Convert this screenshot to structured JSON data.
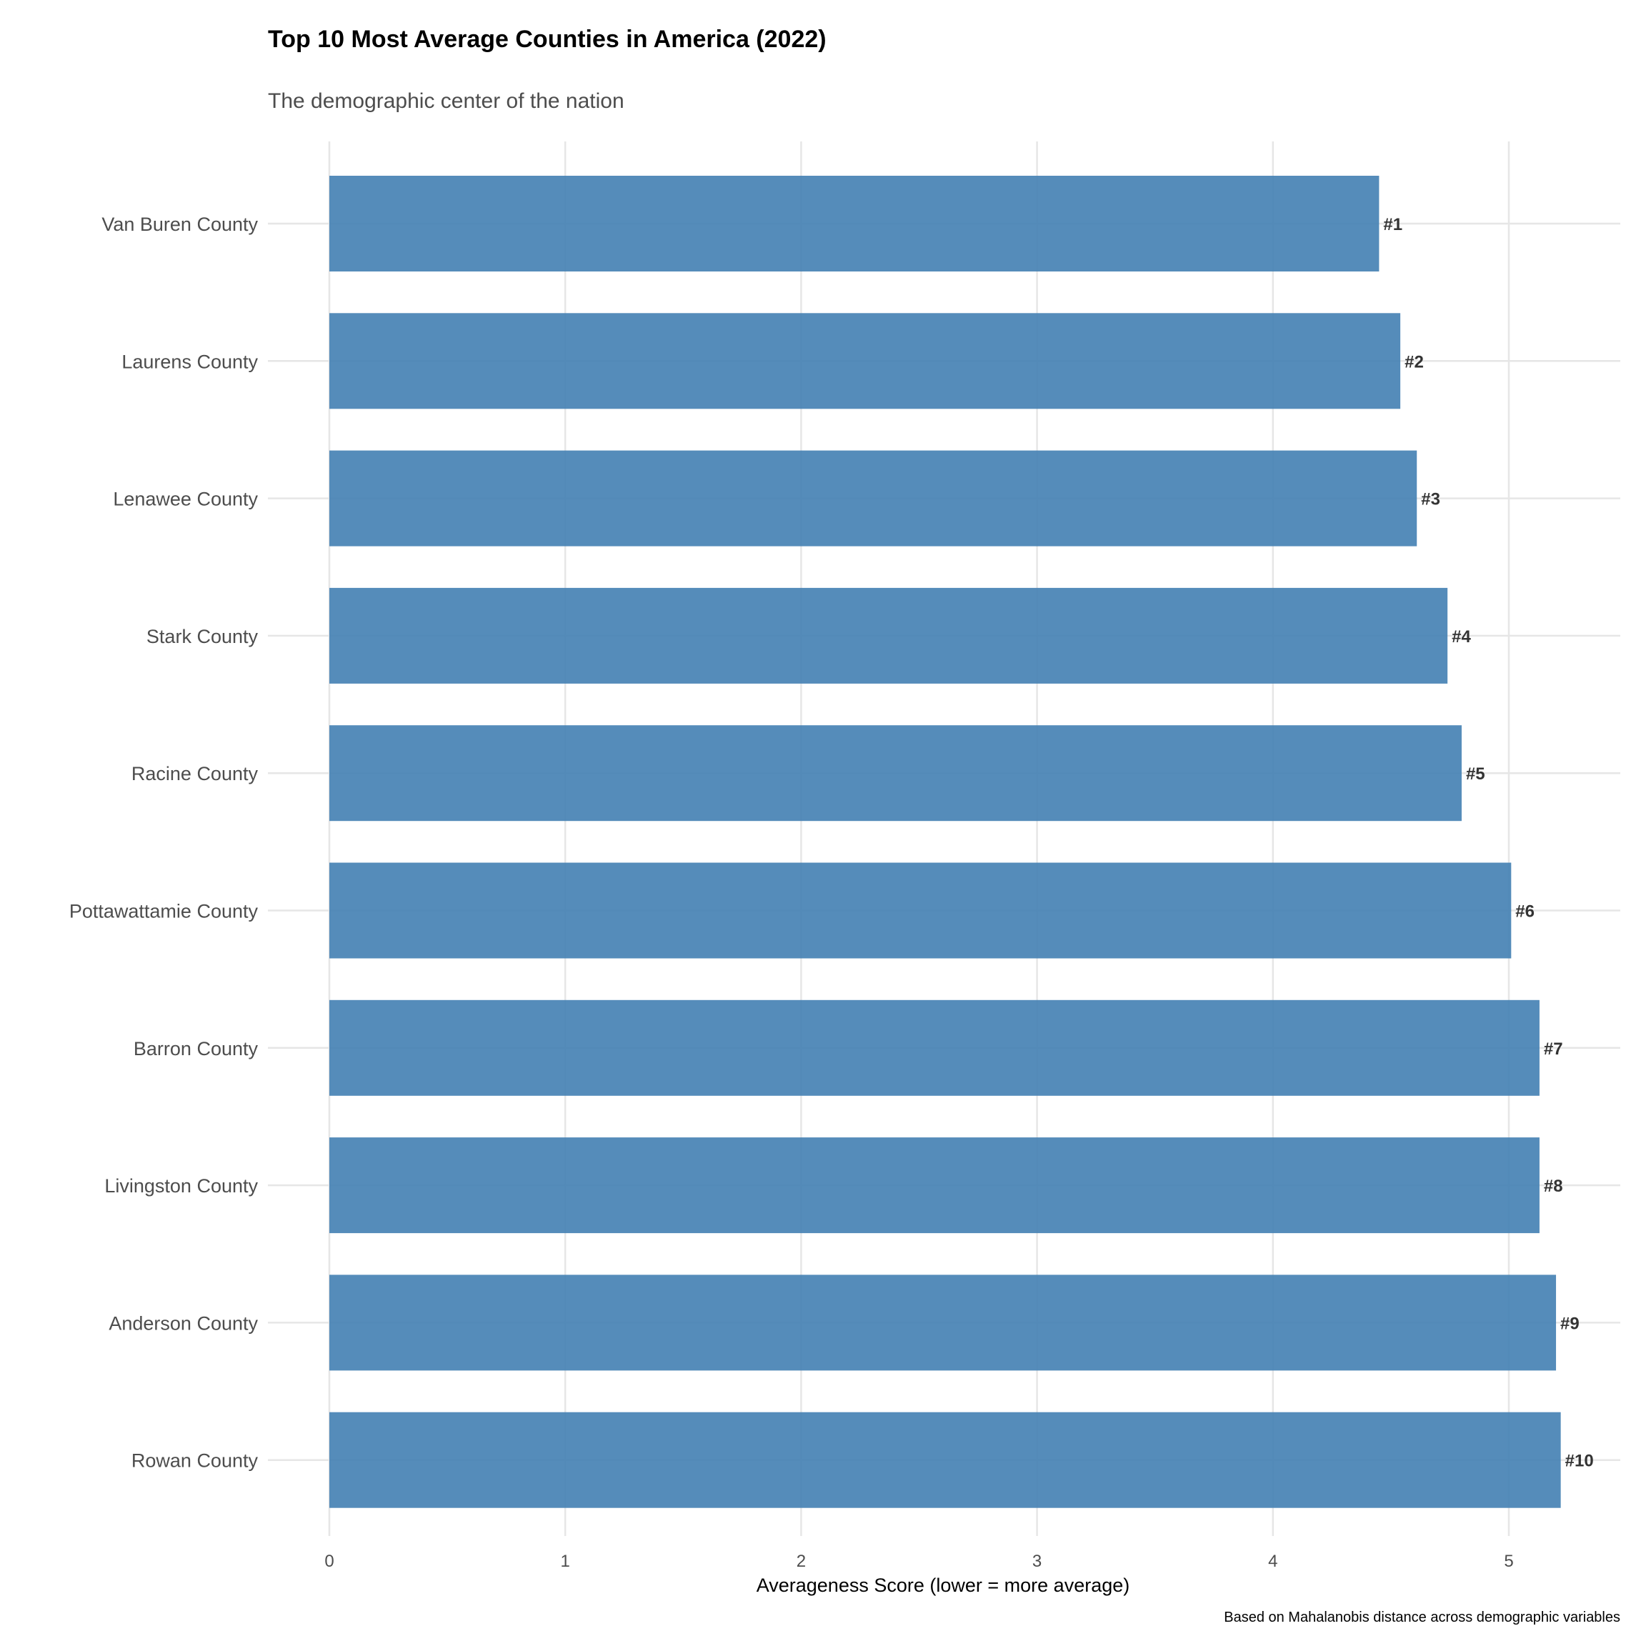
{
  "chart_data": {
    "type": "bar",
    "orientation": "horizontal",
    "title": "Top 10 Most Average Counties in America (2022)",
    "subtitle": "The demographic center of the nation",
    "xlabel": "Averageness Score (lower = more average)",
    "ylabel": "",
    "caption": "Based on Mahalanobis distance across demographic variables",
    "categories": [
      "Van Buren County",
      "Laurens County",
      "Lenawee County",
      "Stark County",
      "Racine County",
      "Pottawattamie County",
      "Barron County",
      "Livingston County",
      "Anderson County",
      "Rowan County"
    ],
    "values": [
      4.45,
      4.54,
      4.61,
      4.74,
      4.8,
      5.01,
      5.13,
      5.13,
      5.2,
      5.22
    ],
    "labels": [
      "#1",
      "#2",
      "#3",
      "#4",
      "#5",
      "#6",
      "#7",
      "#8",
      "#9",
      "#10"
    ],
    "xlim": [
      0,
      5.48
    ],
    "xticks": [
      0,
      1,
      2,
      3,
      4,
      5
    ],
    "xtick_labels": [
      "0",
      "1",
      "2",
      "3",
      "4",
      "5"
    ],
    "grid": true,
    "bar_color": "#4682b4",
    "legend": "none"
  }
}
